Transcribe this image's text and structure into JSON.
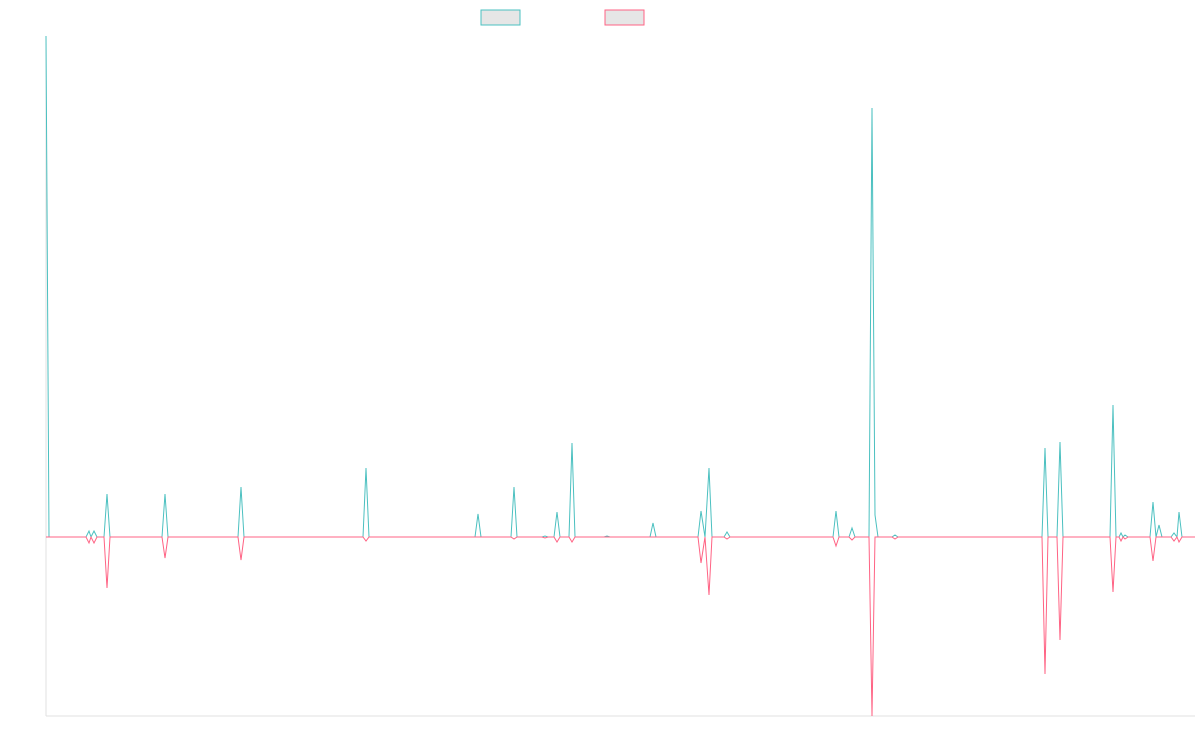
{
  "chart_data": {
    "type": "line",
    "x": [
      0,
      3,
      40,
      43,
      45,
      48,
      51,
      58,
      61,
      64,
      116,
      119,
      122,
      192,
      195,
      198,
      317,
      320,
      323,
      429,
      432,
      435,
      465,
      468,
      471,
      496,
      499,
      502,
      508,
      511,
      514,
      523,
      526,
      529,
      558,
      561,
      564,
      604,
      607,
      610,
      652,
      655,
      659,
      663,
      666,
      678,
      681,
      684,
      787,
      790,
      793,
      803,
      806,
      809,
      823,
      826,
      829,
      832,
      846,
      849,
      852,
      996,
      999,
      1002,
      1011,
      1014,
      1017,
      1064,
      1067,
      1070,
      1073,
      1075,
      1077,
      1079,
      1082,
      1104,
      1107,
      1110,
      1113,
      1116,
      1125,
      1128,
      1131,
      1133,
      1136,
      1149
    ],
    "series": [
      {
        "color": "#4bc0c0",
        "values": [
          501,
          0,
          0,
          6,
          0,
          6,
          0,
          0,
          43,
          0,
          0,
          43,
          0,
          0,
          50,
          0,
          0,
          69,
          0,
          0,
          23,
          0,
          0,
          50,
          0,
          0,
          1,
          0,
          0,
          25,
          0,
          0,
          94,
          0,
          0,
          1,
          0,
          0,
          14,
          0,
          0,
          26,
          0,
          69,
          0,
          0,
          5,
          0,
          0,
          26,
          0,
          0,
          9,
          0,
          0,
          429,
          22,
          0,
          0,
          2,
          0,
          0,
          89,
          0,
          0,
          95,
          0,
          0,
          132,
          0,
          0,
          4,
          0,
          2,
          0,
          0,
          35,
          0,
          12,
          0,
          0,
          4,
          0,
          25,
          0,
          0
        ]
      },
      {
        "color": "#ff6384",
        "values": [
          0,
          0,
          0,
          -6,
          0,
          -6,
          0,
          0,
          -51,
          0,
          0,
          -21,
          0,
          0,
          -23,
          0,
          0,
          -4,
          0,
          0,
          0,
          0,
          0,
          -2,
          0,
          0,
          -1,
          0,
          0,
          -5,
          0,
          0,
          -5,
          0,
          0,
          0,
          0,
          0,
          0,
          0,
          0,
          -26,
          0,
          -58,
          0,
          0,
          -2,
          0,
          0,
          -9,
          0,
          0,
          -3,
          0,
          0,
          -179,
          0,
          0,
          0,
          -2,
          0,
          0,
          -137,
          0,
          0,
          -103,
          0,
          0,
          -55,
          0,
          0,
          -4,
          0,
          -2,
          0,
          0,
          -24,
          0,
          0,
          0,
          0,
          -4,
          0,
          -5,
          0,
          0
        ]
      }
    ],
    "xlim": [
      0,
      1149
    ],
    "ylim": [
      -179,
      501
    ],
    "legend": "top"
  }
}
